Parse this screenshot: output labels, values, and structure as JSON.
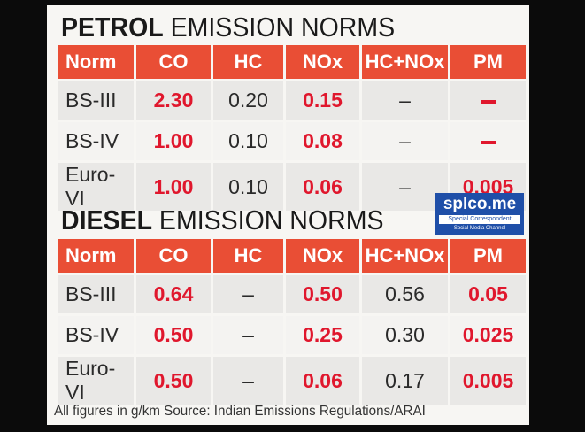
{
  "petrol": {
    "title_bold": "PETROL",
    "title_rest": " EMISSION NORMS",
    "headers": [
      "Norm",
      "CO",
      "HC",
      "NOx",
      "HC+NOx",
      "PM"
    ],
    "rows": [
      [
        "BS-III",
        "2.30",
        "0.20",
        "0.15",
        "–",
        "–"
      ],
      [
        "BS-IV",
        "1.00",
        "0.10",
        "0.08",
        "–",
        "–"
      ],
      [
        "Euro-VI",
        "1.00",
        "0.10",
        "0.06",
        "–",
        "0.005"
      ]
    ]
  },
  "diesel": {
    "title_bold": "DIESEL",
    "title_rest": " EMISSION NORMS",
    "headers": [
      "Norm",
      "CO",
      "HC",
      "NOx",
      "HC+NOx",
      "PM"
    ],
    "rows": [
      [
        "BS-III",
        "0.64",
        "–",
        "0.50",
        "0.56",
        "0.05"
      ],
      [
        "BS-IV",
        "0.50",
        "–",
        "0.25",
        "0.30",
        "0.025"
      ],
      [
        "Euro-VI",
        "0.50",
        "–",
        "0.06",
        "0.17",
        "0.005"
      ]
    ]
  },
  "footer": "All figures in g/km  Source: Indian Emissions Regulations/ARAI",
  "watermark": {
    "name": "splco.me",
    "line1": "Special Correspondent",
    "line2": "Social Media Channel"
  },
  "colors": {
    "header_bg": "#e94e35",
    "highlight": "#e0172d",
    "badge_bg": "#1f4fa8"
  }
}
